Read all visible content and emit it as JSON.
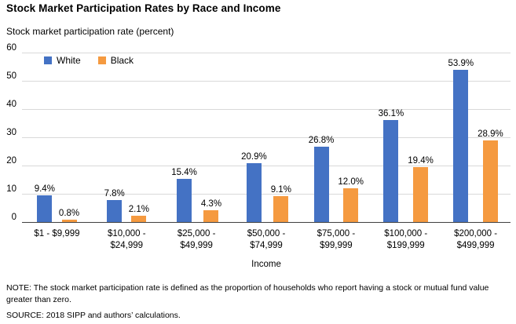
{
  "title": "Stock Market Participation Rates by Race and Income",
  "chart_data": {
    "type": "bar",
    "title": "Stock Market Participation Rates by Race and Income",
    "ylabel": "Stock market participation rate (percent)",
    "xlabel": "Income",
    "categories": [
      "$1 - $9,999",
      "$10,000 - $24,999",
      "$25,000 - $49,999",
      "$50,000 - $74,999",
      "$75,000 - $99,999",
      "$100,000 - $199,999",
      "$200,000 - $499,999"
    ],
    "category_display_lines": [
      [
        "$1 - $9,999"
      ],
      [
        "$10,000 -",
        "$24,999"
      ],
      [
        "$25,000 -",
        "$49,999"
      ],
      [
        "$50,000 -",
        "$74,999"
      ],
      [
        "$75,000 -",
        "$99,999"
      ],
      [
        "$100,000 -",
        "$199,999"
      ],
      [
        "$200,000 -",
        "$499,999"
      ]
    ],
    "series": [
      {
        "name": "White",
        "color": "#4472C4",
        "values": [
          9.4,
          7.8,
          15.4,
          20.9,
          26.8,
          36.1,
          53.9
        ],
        "labels": [
          "9.4%",
          "7.8%",
          "15.4%",
          "20.9%",
          "26.8%",
          "36.1%",
          "53.9%"
        ]
      },
      {
        "name": "Black",
        "color": "#F59A40",
        "values": [
          0.8,
          2.1,
          4.3,
          9.1,
          12.0,
          19.4,
          28.9
        ],
        "labels": [
          "0.8%",
          "2.1%",
          "4.3%",
          "9.1%",
          "12.0%",
          "19.4%",
          "28.9%"
        ]
      }
    ],
    "ylim": [
      0,
      60
    ],
    "yticks": [
      0,
      10,
      20,
      30,
      40,
      50,
      60
    ],
    "grid": true,
    "legend_position": "top-left-inside"
  },
  "footer": {
    "note": "NOTE: The stock market participation rate is defined as the proportion of households who report having a stock or mutual fund value greater than zero.",
    "source": "SOURCE: 2018 SIPP and authors’ calculations."
  },
  "colors": {
    "white_series": "#4472C4",
    "black_series": "#F59A40",
    "grid": "#D9D9D9",
    "axis": "#404040",
    "text": "#000000",
    "background": "#FFFFFF"
  }
}
